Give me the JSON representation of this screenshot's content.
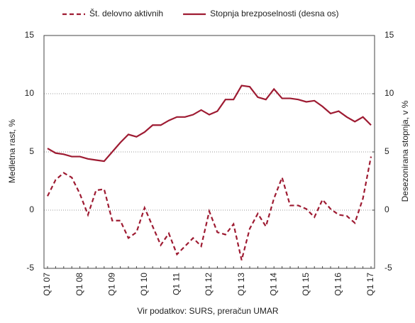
{
  "chart_data": {
    "type": "line",
    "source": "Vir podatkov: SURS, preračun UMAR",
    "ylabel": "Medletna rast, %",
    "y2label": "Desezonirana stopnja, v %",
    "categories": [
      "Q1 07",
      null,
      null,
      null,
      "Q1 08",
      null,
      null,
      null,
      "Q1 09",
      null,
      null,
      null,
      "Q1 10",
      null,
      null,
      null,
      "Q1 11",
      null,
      null,
      null,
      "Q1 12",
      null,
      null,
      null,
      "Q1 13",
      null,
      null,
      null,
      "Q1 14",
      null,
      null,
      null,
      "Q1 15",
      null,
      null,
      null,
      "Q1 16",
      null,
      null,
      null,
      "Q1 17"
    ],
    "series": [
      {
        "name": "Št. delovno aktivnih",
        "color": "#9e1b32",
        "dash": true,
        "values": [
          1.2,
          2.6,
          3.2,
          2.8,
          1.4,
          -0.4,
          1.7,
          1.8,
          -0.9,
          -0.9,
          -2.4,
          -1.9,
          0.2,
          -1.4,
          -3.0,
          -2.0,
          -3.8,
          -3.1,
          -2.4,
          -3.1,
          -0.1,
          -1.9,
          -2.1,
          -1.2,
          -4.3,
          -1.6,
          -0.3,
          -1.4,
          1.0,
          2.8,
          0.4,
          0.4,
          0.1,
          -0.6,
          0.9,
          0.1,
          -0.4,
          -0.5,
          -1.1,
          1.0,
          4.6
        ]
      },
      {
        "name": "Stopnja brezposelnosti (desna os)",
        "color": "#9e1b32",
        "dash": false,
        "axis": "y2",
        "values": [
          5.3,
          4.9,
          4.8,
          4.6,
          4.6,
          4.4,
          4.3,
          4.2,
          5.0,
          5.8,
          6.5,
          6.3,
          6.7,
          7.3,
          7.3,
          7.7,
          8.0,
          8.0,
          8.2,
          8.6,
          8.2,
          8.5,
          9.5,
          9.5,
          10.7,
          10.6,
          9.7,
          9.5,
          10.4,
          9.6,
          9.6,
          9.5,
          9.3,
          9.4,
          8.9,
          8.3,
          8.5,
          8.0,
          7.6,
          8.0,
          7.3
        ]
      }
    ],
    "ylim": [
      -5,
      15
    ],
    "yticks": [
      -5,
      0,
      5,
      10,
      15
    ],
    "y2lim": [
      -5,
      15
    ],
    "y2ticks": [
      -5,
      0,
      5,
      10,
      15
    ],
    "grid": true
  }
}
